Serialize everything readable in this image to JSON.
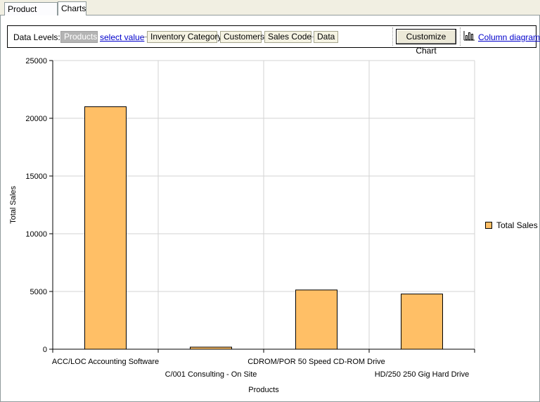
{
  "tabs": [
    {
      "label": "Product Sales",
      "active": false
    },
    {
      "label": "Charts",
      "active": true
    }
  ],
  "toolbar": {
    "data_levels_label": "Data Levels:",
    "levels": [
      "Products",
      "Inventory Category",
      "Customers",
      "Sales Code",
      "Data"
    ],
    "select_value_link": "select value",
    "customize_button": "Customize Chart",
    "diagram_link": "Column diagram",
    "diagram_icon": "column-chart-icon"
  },
  "colors": {
    "bar": "#ffbf66",
    "grid": "#d3d3d3"
  },
  "chart_data": {
    "type": "bar",
    "categories": [
      "ACC/LOC Accounting Software",
      "C/001 Consulting - On Site",
      "CDROM/POR 50 Speed CD-ROM Drive",
      "HD/250 250 Gig Hard Drive"
    ],
    "series": [
      {
        "name": "Total Sales",
        "values": [
          21000,
          180,
          5130,
          4780
        ]
      }
    ],
    "xlabel": "Products",
    "ylabel": "Total Sales",
    "ylim": [
      0,
      25000
    ],
    "yticks": [
      0,
      5000,
      10000,
      15000,
      20000,
      25000
    ],
    "grid": true,
    "legend": "right"
  }
}
